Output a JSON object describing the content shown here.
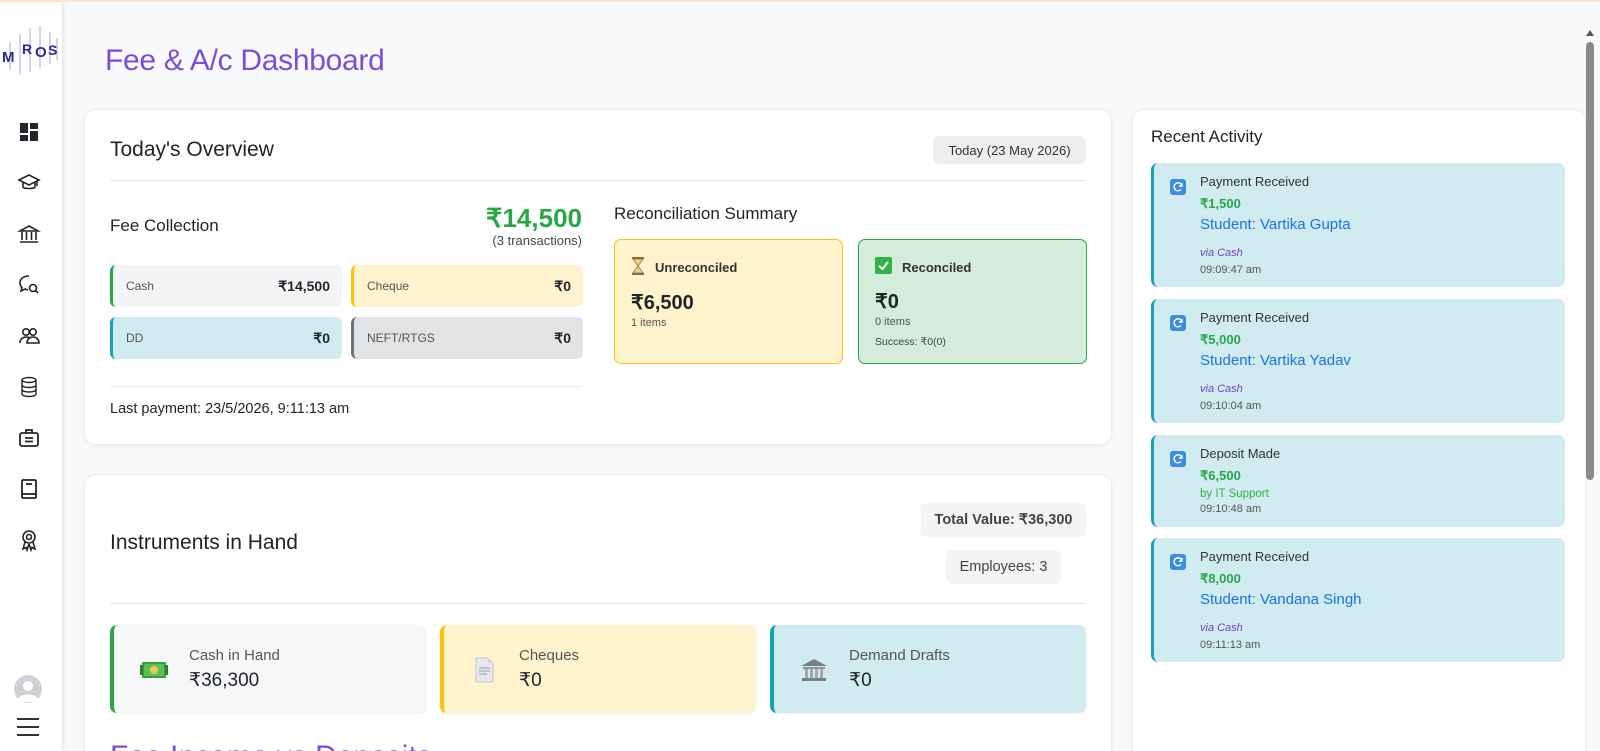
{
  "app": {
    "logo_text": "MROS"
  },
  "sidebar": {
    "items": [
      "dashboard-icon",
      "graduation-cap-icon",
      "bank-icon",
      "search-chat-icon",
      "users-icon",
      "database-icon",
      "briefcase-icon",
      "book-icon",
      "award-icon"
    ]
  },
  "page": {
    "title": "Fee & A/c Dashboard"
  },
  "overview": {
    "title": "Today's Overview",
    "date_pill": "Today (23 May 2026)",
    "fee_collection": {
      "title": "Fee Collection",
      "total": "₹14,500",
      "transactions": "(3 transactions)",
      "methods": [
        {
          "label": "Cash",
          "value": "₹14,500",
          "bg": "#f3f4f6",
          "border": "#28a745"
        },
        {
          "label": "Cheque",
          "value": "₹0",
          "bg": "#fff3cd",
          "border": "#ffc107"
        },
        {
          "label": "DD",
          "value": "₹0",
          "bg": "#d1ecf1",
          "border": "#17a2b8"
        },
        {
          "label": "NEFT/RTGS",
          "value": "₹0",
          "bg": "#e2e3e5",
          "border": "#6c757d"
        }
      ],
      "last_payment": "Last payment: 23/5/2026, 9:11:13 am"
    },
    "reconciliation": {
      "title": "Reconciliation Summary",
      "unreconciled": {
        "label": "Unreconciled",
        "amount": "₹6,500",
        "items": "1 items"
      },
      "reconciled": {
        "label": "Reconciled",
        "amount": "₹0",
        "items": "0 items",
        "success": "Success: ₹0(0)"
      }
    }
  },
  "instruments": {
    "title": "Instruments in Hand",
    "total_value": "Total Value: ₹36,300",
    "employees": "Employees: 3",
    "cards": [
      {
        "label": "Cash in Hand",
        "value": "₹36,300",
        "icon": "cash-icon",
        "bg": "#f6f7f9",
        "border": "#28a745"
      },
      {
        "label": "Cheques",
        "value": "₹0",
        "icon": "document-icon",
        "bg": "#fff3cd",
        "border": "#ffc107"
      },
      {
        "label": "Demand Drafts",
        "value": "₹0",
        "icon": "bank-building-icon",
        "bg": "#d1ecf1",
        "border": "#17a2b8"
      }
    ],
    "next_section_title": "Fee Income vs Deposits"
  },
  "activity": {
    "title": "Recent Activity",
    "items": [
      {
        "type": "Payment Received",
        "amount": "₹1,500",
        "who": "Student: Vartika Gupta",
        "via": "via Cash",
        "time": "09:09:47 am"
      },
      {
        "type": "Payment Received",
        "amount": "₹5,000",
        "who": "Student: Vartika Yadav",
        "via": "via Cash",
        "time": "09:10:04 am"
      },
      {
        "type": "Deposit Made",
        "amount": "₹6,500",
        "who": "by IT Support",
        "via": "",
        "time": "09:10:48 am"
      },
      {
        "type": "Payment Received",
        "amount": "₹8,000",
        "who": "Student: Vandana Singh",
        "via": "via Cash",
        "time": "09:11:13 am"
      }
    ]
  }
}
